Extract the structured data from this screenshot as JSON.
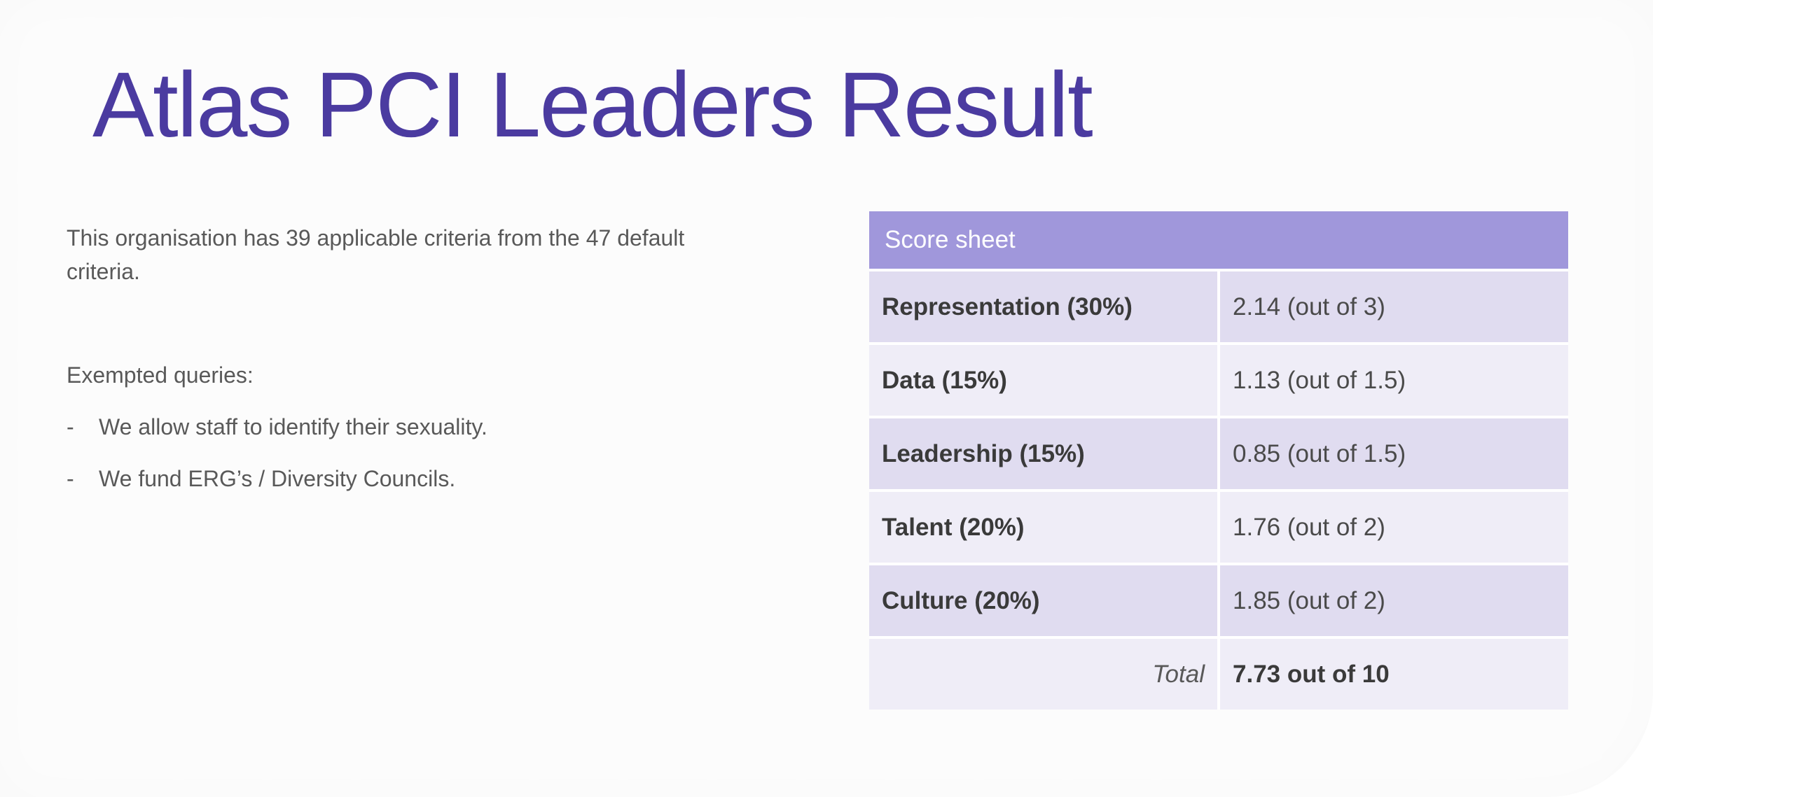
{
  "title": "Atlas PCI Leaders Result",
  "intro": "This organisation has 39 applicable criteria from the 47 default criteria.",
  "exempted": {
    "heading": "Exempted queries:",
    "items": [
      {
        "dash": "-",
        "text": "We allow staff to identify their sexuality."
      },
      {
        "dash": "-",
        "text": "We fund ERG’s / Diversity Councils."
      }
    ]
  },
  "score_sheet": {
    "header": "Score sheet",
    "rows": [
      {
        "label": "Representation (30%)",
        "value": "2.14 (out of 3)"
      },
      {
        "label": "Data (15%)",
        "value": "1.13 (out of 1.5)"
      },
      {
        "label": "Leadership (15%)",
        "value": "0.85 (out of 1.5)"
      },
      {
        "label": "Talent (20%)",
        "value": "1.76 (out of 2)"
      },
      {
        "label": "Culture (20%)",
        "value": "1.85 (out of 2)"
      }
    ],
    "total_label": "Total",
    "total_value": "7.73 out of 10"
  },
  "colors": {
    "title": "#4b3ba0",
    "table_header": "#a097db",
    "row_dark": "#e0dcf0",
    "row_light": "#efedf7"
  }
}
